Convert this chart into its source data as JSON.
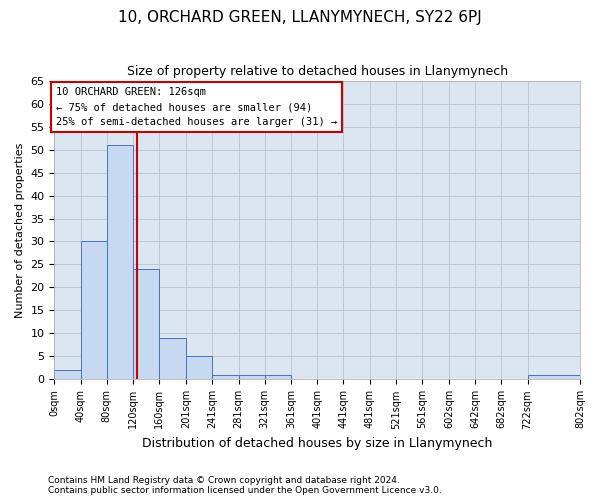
{
  "title": "10, ORCHARD GREEN, LLANYMYNECH, SY22 6PJ",
  "subtitle": "Size of property relative to detached houses in Llanymynech",
  "xlabel": "Distribution of detached houses by size in Llanymynech",
  "ylabel": "Number of detached properties",
  "bar_values": [
    2,
    30,
    51,
    24,
    9,
    5,
    1,
    1,
    1,
    0,
    0,
    0,
    0,
    0,
    0,
    0,
    0,
    0,
    1
  ],
  "bar_edges": [
    0,
    40,
    80,
    120,
    160,
    201,
    241,
    281,
    321,
    361,
    401,
    441,
    481,
    521,
    561,
    602,
    642,
    682,
    722,
    802
  ],
  "tick_positions": [
    0,
    40,
    80,
    120,
    160,
    201,
    241,
    281,
    321,
    361,
    401,
    441,
    481,
    521,
    561,
    602,
    642,
    682,
    722,
    802
  ],
  "tick_labels": [
    "0sqm",
    "40sqm",
    "80sqm",
    "120sqm",
    "160sqm",
    "201sqm",
    "241sqm",
    "281sqm",
    "321sqm",
    "361sqm",
    "401sqm",
    "441sqm",
    "481sqm",
    "521sqm",
    "561sqm",
    "602sqm",
    "642sqm",
    "682sqm",
    "722sqm",
    "802sqm"
  ],
  "bar_color": "#c6d9f0",
  "bar_edge_color": "#4472c4",
  "grid_color": "#c0c8d8",
  "background_color": "#dce6f1",
  "red_line_x": 126,
  "annotation_line1": "10 ORCHARD GREEN: 126sqm",
  "annotation_line2": "← 75% of detached houses are smaller (94)",
  "annotation_line3": "25% of semi-detached houses are larger (31) →",
  "annotation_box_color": "#ffffff",
  "annotation_box_edge": "#cc0000",
  "red_line_color": "#cc0000",
  "ylim": [
    0,
    65
  ],
  "yticks": [
    0,
    5,
    10,
    15,
    20,
    25,
    30,
    35,
    40,
    45,
    50,
    55,
    60,
    65
  ],
  "footer_line1": "Contains HM Land Registry data © Crown copyright and database right 2024.",
  "footer_line2": "Contains public sector information licensed under the Open Government Licence v3.0."
}
